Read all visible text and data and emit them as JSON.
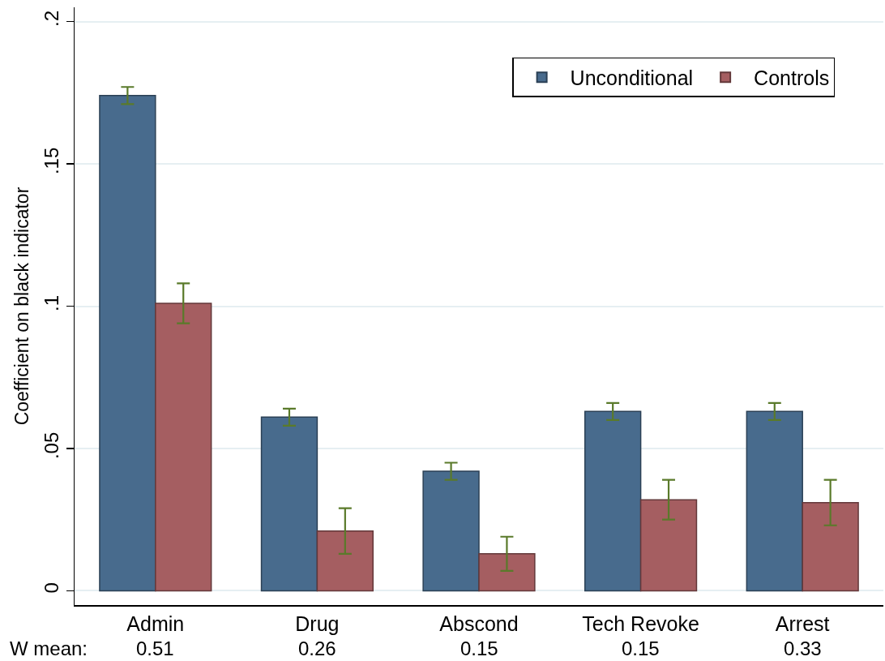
{
  "chart_data": {
    "type": "bar",
    "ylabel": "Coefficient on black indicator",
    "categories": [
      "Admin",
      "Drug",
      "Abscond",
      "Tech Revoke",
      "Arrest"
    ],
    "series": [
      {
        "name": "Unconditional",
        "color": "#486b8d",
        "values": [
          0.174,
          0.061,
          0.042,
          0.063,
          0.063
        ],
        "errors": [
          0.003,
          0.003,
          0.003,
          0.003,
          0.003
        ]
      },
      {
        "name": "Controls",
        "color": "#a55e61",
        "values": [
          0.101,
          0.021,
          0.013,
          0.032,
          0.031
        ],
        "errors": [
          0.007,
          0.008,
          0.006,
          0.007,
          0.008
        ]
      }
    ],
    "ylim": [
      -0.005,
      0.205
    ],
    "yticks": [
      0,
      {
        "value": 0.05,
        "label": ".05"
      },
      {
        "value": 0.1,
        "label": ".1"
      },
      {
        "value": 0.15,
        "label": ".15"
      },
      {
        "value": 0.2,
        "label": ".2"
      }
    ],
    "grid": "y",
    "legend": "top right",
    "annotations": [
      "W mean:",
      "0.51",
      "0.26",
      "0.15",
      "0.15",
      "0.33"
    ]
  }
}
